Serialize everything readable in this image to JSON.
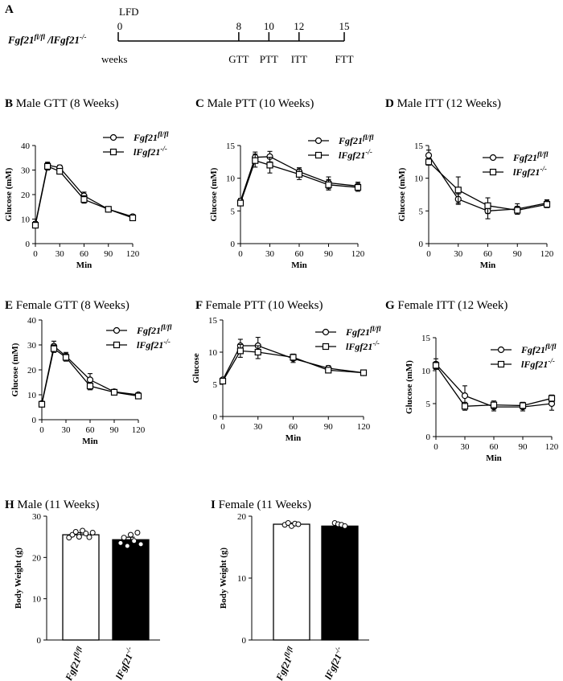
{
  "timeline": {
    "panel": "A",
    "diet": "LFD",
    "genotype": "Fgf21",
    "genotype_sup": "fl/fl",
    "genotype2": " /lFgf21",
    "genotype2_sup": "-/-",
    "unit": "weeks",
    "weeks": [
      0,
      8,
      10,
      12,
      15
    ],
    "tests": [
      "",
      "GTT",
      "PTT",
      "ITT",
      "FTT"
    ]
  },
  "legend": {
    "flox_name": "Fgf21",
    "flox_sup": "fl/fl",
    "ko_name": "lFgf21",
    "ko_sup": "-/-"
  },
  "chart_data": [
    {
      "panel": "B",
      "title": "Male GTT (8 Weeks)",
      "type": "line",
      "xlabel": "Min",
      "ylabel": "Glucose (mM)",
      "xlim": [
        0,
        120
      ],
      "xticks": [
        0,
        30,
        60,
        90,
        120
      ],
      "ylim": [
        0,
        40
      ],
      "yticks": [
        0,
        10,
        20,
        30,
        40
      ],
      "x": [
        0,
        15,
        30,
        60,
        90,
        120
      ],
      "series": [
        {
          "name": "Fgf21 fl/fl",
          "marker": "circle",
          "values": [
            8,
            32,
            31,
            19.5,
            14,
            11
          ],
          "err": [
            1,
            1.2,
            1,
            1.5,
            0.5,
            0.5
          ]
        },
        {
          "name": "lFgf21 -/-",
          "marker": "square",
          "values": [
            7.5,
            31.5,
            29.5,
            18,
            14,
            10.5
          ],
          "err": [
            1,
            1.5,
            1,
            1.5,
            0.5,
            0.5
          ]
        }
      ]
    },
    {
      "panel": "C",
      "title": "Male PTT (10 Weeks)",
      "type": "line",
      "xlabel": "Min",
      "ylabel": "Glucose (mM)",
      "xlim": [
        0,
        120
      ],
      "xticks": [
        0,
        30,
        60,
        90,
        120
      ],
      "ylim": [
        0,
        15
      ],
      "yticks": [
        0,
        5,
        10,
        15
      ],
      "x": [
        0,
        15,
        30,
        60,
        90,
        120
      ],
      "series": [
        {
          "name": "Fgf21 fl/fl",
          "marker": "circle",
          "values": [
            6.5,
            13.2,
            13.3,
            11,
            9.3,
            8.8
          ],
          "err": [
            0.4,
            0.8,
            0.8,
            0.6,
            0.9,
            0.6
          ]
        },
        {
          "name": "lFgf21 -/-",
          "marker": "square",
          "values": [
            6.2,
            12.7,
            12,
            10.6,
            9,
            8.6
          ],
          "err": [
            0.4,
            1,
            1.2,
            0.8,
            0.8,
            0.6
          ]
        }
      ]
    },
    {
      "panel": "D",
      "title": "Male ITT (12 Weeks)",
      "type": "line",
      "xlabel": "Min",
      "ylabel": "Glucose (mM)",
      "xlim": [
        0,
        120
      ],
      "xticks": [
        0,
        30,
        60,
        90,
        120
      ],
      "ylim": [
        0,
        15
      ],
      "yticks": [
        0,
        5,
        10,
        15
      ],
      "x": [
        0,
        30,
        60,
        90,
        120
      ],
      "series": [
        {
          "name": "Fgf21 fl/fl",
          "marker": "circle",
          "values": [
            13.5,
            6.8,
            5,
            5.3,
            6.2
          ],
          "err": [
            0.8,
            0.8,
            1.2,
            0.8,
            0.5
          ]
        },
        {
          "name": "lFgf21 -/-",
          "marker": "square",
          "values": [
            12.5,
            8.2,
            5.8,
            5.1,
            6
          ],
          "err": [
            0.5,
            2,
            1.2,
            0.6,
            0.5
          ]
        }
      ]
    },
    {
      "panel": "E",
      "title": "Female GTT (8 Weeks)",
      "type": "line",
      "xlabel": "Min",
      "ylabel": "Glucose (mM)",
      "xlim": [
        0,
        120
      ],
      "xticks": [
        0,
        30,
        60,
        90,
        120
      ],
      "ylim": [
        0,
        40
      ],
      "yticks": [
        0,
        10,
        20,
        30,
        40
      ],
      "x": [
        0,
        15,
        30,
        60,
        90,
        120
      ],
      "series": [
        {
          "name": "Fgf21 fl/fl",
          "marker": "circle",
          "values": [
            6.5,
            29.5,
            25.5,
            16,
            11.2,
            10
          ],
          "err": [
            0.5,
            2,
            1.5,
            2.5,
            0.5,
            0.5
          ]
        },
        {
          "name": "lFgf21 -/-",
          "marker": "square",
          "values": [
            6.2,
            28.5,
            25,
            13.5,
            11,
            9.5
          ],
          "err": [
            0.5,
            1.5,
            1.5,
            1.5,
            0.5,
            0.5
          ]
        }
      ]
    },
    {
      "panel": "F",
      "title": "Female PTT (10 Weeks)",
      "type": "line",
      "xlabel": "Min",
      "ylabel": "Glucose",
      "xlim": [
        0,
        120
      ],
      "xticks": [
        0,
        30,
        60,
        90,
        120
      ],
      "ylim": [
        0,
        15
      ],
      "yticks": [
        0,
        5,
        10,
        15
      ],
      "x": [
        0,
        15,
        30,
        60,
        90,
        120
      ],
      "series": [
        {
          "name": "Fgf21 fl/fl",
          "marker": "circle",
          "values": [
            5.7,
            11,
            11,
            9,
            7.5,
            6.8
          ],
          "err": [
            0.3,
            1,
            1.3,
            0.6,
            0.4,
            0.2
          ]
        },
        {
          "name": "lFgf21 -/-",
          "marker": "square",
          "values": [
            5.5,
            10.2,
            10,
            9.2,
            7.2,
            6.8
          ],
          "err": [
            0.3,
            1,
            1,
            0.5,
            0.4,
            0.2
          ]
        }
      ]
    },
    {
      "panel": "G",
      "title": "Female ITT (12 Week)",
      "type": "line",
      "xlabel": "Min",
      "ylabel": "Glucose (mM)",
      "xlim": [
        0,
        120
      ],
      "xticks": [
        0,
        30,
        60,
        90,
        120
      ],
      "ylim": [
        0,
        15
      ],
      "yticks": [
        0,
        5,
        10,
        15
      ],
      "x": [
        0,
        30,
        60,
        90,
        120
      ],
      "series": [
        {
          "name": "Fgf21 fl/fl",
          "marker": "circle",
          "values": [
            11,
            6.2,
            4.5,
            4.5,
            5
          ],
          "err": [
            0.8,
            1.5,
            0.6,
            0.6,
            1
          ]
        },
        {
          "name": "lFgf21 -/-",
          "marker": "square",
          "values": [
            10.8,
            4.6,
            4.8,
            4.7,
            5.8
          ],
          "err": [
            0.5,
            0.6,
            0.6,
            0.5,
            0.5
          ]
        }
      ]
    },
    {
      "panel": "H",
      "title": "Male  (11 Weeks)",
      "type": "bar",
      "ylabel": "Body Weight (g)",
      "ylim": [
        0,
        30
      ],
      "yticks": [
        0,
        10,
        20,
        30
      ],
      "categories": [
        "Fgf21 fl/fl",
        "lFgf21 -/-"
      ],
      "values": [
        25.5,
        24.3
      ],
      "err": [
        0.5,
        0.6
      ],
      "fills": [
        "#ffffff",
        "#000000"
      ],
      "points": [
        [
          24.8,
          25.5,
          26.2,
          25.0,
          26.5,
          25.8,
          24.9,
          26.0
        ],
        [
          23.5,
          24.8,
          22.8,
          25.5,
          24.0,
          26.0,
          23.2
        ]
      ]
    },
    {
      "panel": "I",
      "title": "Female  (11 Weeks)",
      "type": "bar",
      "ylabel": "Body Weight (g)",
      "ylim": [
        0,
        20
      ],
      "yticks": [
        0,
        10,
        20
      ],
      "categories": [
        "Fgf21 fl/fl",
        "lFgf21 -/-"
      ],
      "values": [
        18.7,
        18.4
      ],
      "err": [
        0.2,
        0.2
      ],
      "fills": [
        "#ffffff",
        "#000000"
      ],
      "points": [
        [
          18.6,
          18.9,
          18.4,
          18.8,
          18.7
        ],
        [
          18.9,
          18.7,
          18.6,
          18.4
        ]
      ]
    }
  ]
}
